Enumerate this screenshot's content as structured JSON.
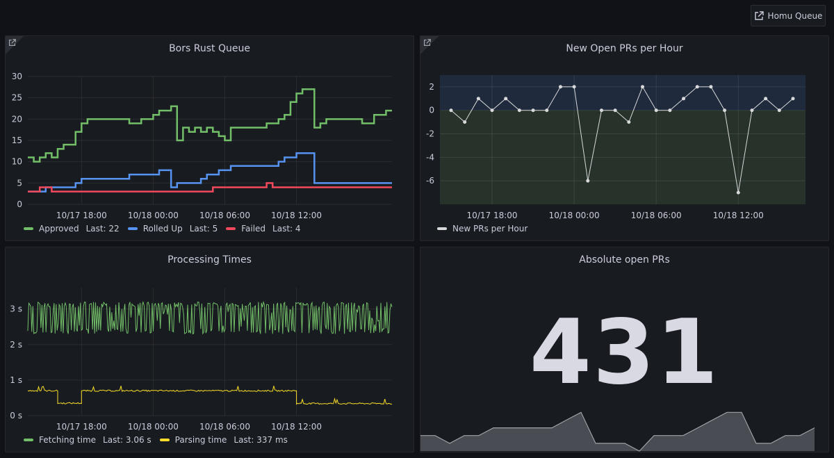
{
  "header": {
    "homu_button_label": "Homu Queue"
  },
  "colors": {
    "green": "#73bf69",
    "blue": "#5794f2",
    "red": "#f2495c",
    "yellow": "#fade2a",
    "white": "#d8d9da"
  },
  "panels": {
    "bors": {
      "title": "Bors Rust Queue",
      "legend": [
        {
          "name": "Approved",
          "last": "Last: 22"
        },
        {
          "name": "Rolled Up",
          "last": "Last: 5"
        },
        {
          "name": "Failed",
          "last": "Last: 4"
        }
      ]
    },
    "prs": {
      "title": "New Open PRs per Hour",
      "legend": [
        {
          "name": "New PRs per Hour"
        }
      ]
    },
    "proc": {
      "title": "Processing Times",
      "legend": [
        {
          "name": "Fetching time",
          "last": "Last: 3.06 s"
        },
        {
          "name": "Parsing time",
          "last": "Last: 337 ms"
        }
      ]
    },
    "abs": {
      "title": "Absolute open PRs",
      "value": "431"
    }
  },
  "chart_data": [
    {
      "type": "line",
      "title": "Bors Rust Queue",
      "x": [
        0,
        1,
        2,
        3,
        4,
        5,
        6,
        7,
        8,
        9,
        10,
        11,
        12,
        13,
        14,
        15,
        16,
        17,
        18,
        19,
        20,
        21,
        22,
        23,
        24,
        25,
        26,
        27,
        28,
        29,
        30,
        31,
        32,
        33,
        34,
        35,
        36,
        37,
        38,
        39,
        40,
        41,
        42,
        43,
        44,
        45,
        46,
        47,
        48,
        49,
        50,
        51,
        52,
        53,
        54,
        55,
        56,
        57,
        58,
        59,
        60,
        61
      ],
      "xticks": [
        {
          "x": 9,
          "label": "10/17 18:00"
        },
        {
          "x": 21,
          "label": "10/18 00:00"
        },
        {
          "x": 33,
          "label": "10/18 06:00"
        },
        {
          "x": 45,
          "label": "10/18 12:00"
        }
      ],
      "ylim": [
        0,
        30
      ],
      "yticks": [
        0,
        5,
        10,
        15,
        20,
        25,
        30
      ],
      "series": [
        {
          "name": "Approved",
          "color": "#73bf69",
          "values": [
            11,
            10,
            11,
            12,
            11,
            13,
            14,
            14,
            17,
            19,
            20,
            20,
            20,
            20,
            20,
            20,
            20,
            19,
            19,
            20,
            20,
            21,
            22,
            22,
            23,
            15,
            18,
            17,
            18,
            17,
            18,
            17,
            16,
            15,
            18,
            18,
            18,
            18,
            18,
            18,
            19,
            19,
            20,
            21,
            24,
            26,
            27,
            27,
            18,
            19,
            20,
            20,
            20,
            20,
            20,
            20,
            19,
            19,
            21,
            21,
            22,
            22
          ]
        },
        {
          "name": "Rolled Up",
          "color": "#5794f2",
          "values": [
            3,
            3,
            3,
            4,
            4,
            4,
            4,
            4,
            5,
            6,
            6,
            6,
            6,
            6,
            6,
            6,
            6,
            7,
            7,
            7,
            7,
            7,
            8,
            8,
            4,
            5,
            5,
            5,
            5,
            6,
            7,
            7,
            8,
            8,
            9,
            9,
            9,
            9,
            9,
            9,
            9,
            9,
            10,
            11,
            11,
            12,
            12,
            12,
            5,
            5,
            5,
            5,
            5,
            5,
            5,
            5,
            5,
            5,
            5,
            5,
            5,
            5
          ]
        },
        {
          "name": "Failed",
          "color": "#f2495c",
          "values": [
            3,
            3,
            4,
            4,
            3,
            3,
            3,
            3,
            3,
            3,
            3,
            3,
            3,
            3,
            3,
            3,
            3,
            3,
            3,
            3,
            3,
            3,
            3,
            3,
            3,
            3,
            3,
            3,
            3,
            3,
            3,
            4,
            4,
            4,
            4,
            4,
            4,
            4,
            4,
            4,
            5,
            4,
            4,
            4,
            4,
            4,
            4,
            4,
            4,
            4,
            4,
            4,
            4,
            4,
            4,
            4,
            4,
            4,
            4,
            4,
            4,
            4
          ]
        }
      ]
    },
    {
      "type": "line",
      "title": "New Open PRs per Hour",
      "x": [
        0,
        1,
        2,
        3,
        4,
        5,
        6,
        7,
        8,
        9,
        10,
        11,
        12,
        13,
        14,
        15,
        16,
        17,
        18,
        19,
        20,
        21,
        22,
        23,
        24,
        25
      ],
      "xticks": [
        {
          "x": 3,
          "label": "10/17 18:00"
        },
        {
          "x": 9,
          "label": "10/18 00:00"
        },
        {
          "x": 15,
          "label": "10/18 06:00"
        },
        {
          "x": 21,
          "label": "10/18 12:00"
        }
      ],
      "ylim": [
        -8,
        3
      ],
      "yticks": [
        2,
        0,
        -2,
        -4,
        -6
      ],
      "thresholds": {
        "above_zero": "#1f2a3d",
        "below_zero": "#27332a"
      },
      "series": [
        {
          "name": "New PRs per Hour",
          "color": "#d8d9da",
          "values": [
            0,
            -1,
            1,
            0,
            1,
            0,
            0,
            0,
            2,
            2,
            -6,
            0,
            0,
            -1,
            2,
            0,
            0,
            1,
            2,
            2,
            0,
            -7,
            0,
            1,
            0,
            1
          ]
        }
      ]
    },
    {
      "type": "line",
      "title": "Processing Times",
      "xticks": [
        {
          "x": 9,
          "label": "10/17 18:00"
        },
        {
          "x": 21,
          "label": "10/18 00:00"
        },
        {
          "x": 33,
          "label": "10/18 06:00"
        },
        {
          "x": 45,
          "label": "10/18 12:00"
        }
      ],
      "ylim": [
        0,
        3.6
      ],
      "yticks": [
        {
          "v": 0,
          "label": "0 s"
        },
        {
          "v": 1,
          "label": "1 s"
        },
        {
          "v": 2,
          "label": "2 s"
        },
        {
          "v": 3,
          "label": "3 s"
        }
      ],
      "series": [
        {
          "name": "Fetching time",
          "color": "#73bf69",
          "range": [
            2.3,
            3.2
          ],
          "last": 3.06
        },
        {
          "name": "Parsing time",
          "color": "#fade2a",
          "segments": [
            {
              "from": 0,
              "to": 5,
              "v": 0.7
            },
            {
              "from": 5,
              "to": 9,
              "v": 0.35
            },
            {
              "from": 9,
              "to": 45,
              "v": 0.7
            },
            {
              "from": 45,
              "to": 61,
              "v": 0.34
            }
          ],
          "last": 0.337
        }
      ]
    },
    {
      "type": "area",
      "title": "Absolute open PRs",
      "values": [
        430,
        430,
        429,
        430,
        430,
        431,
        431,
        431,
        431,
        431,
        432,
        433,
        429,
        429,
        429,
        428,
        430,
        430,
        430,
        431,
        432,
        433,
        433,
        429,
        429,
        430,
        430,
        431
      ],
      "ylim": [
        428,
        435
      ]
    }
  ]
}
